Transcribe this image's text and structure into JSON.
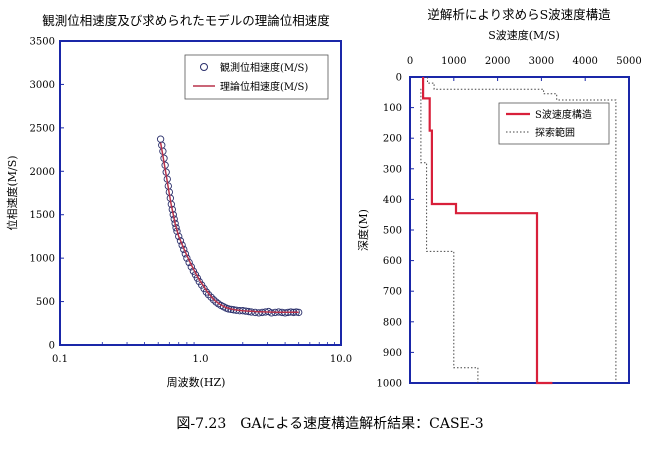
{
  "caption": "図-7.23　GAによる速度構造解析結果：CASE-3",
  "chart_data": [
    {
      "type": "scatter",
      "title": "観測位相速度及び求められたモデルの理論位相速度",
      "xlabel": "周波数(HZ)",
      "ylabel": "位相速度(M/S)",
      "x_scale": "log",
      "xlim": [
        0.1,
        10.0
      ],
      "ylim": [
        0,
        3500
      ],
      "x_ticks": [
        "0.1",
        "1.0",
        "10.0"
      ],
      "y_ticks": [
        "0",
        "500",
        "1000",
        "1500",
        "2000",
        "2500",
        "3000",
        "3500"
      ],
      "legend_position": "top-right",
      "series": [
        {
          "name": "観測位相速度(M/S)",
          "style": "open-circle",
          "color": "#2a2f6b",
          "x": [
            0.52,
            0.53,
            0.54,
            0.55,
            0.56,
            0.57,
            0.58,
            0.59,
            0.6,
            0.61,
            0.62,
            0.63,
            0.64,
            0.65,
            0.66,
            0.67,
            0.68,
            0.7,
            0.72,
            0.74,
            0.76,
            0.78,
            0.8,
            0.83,
            0.86,
            0.89,
            0.92,
            0.95,
            0.98,
            1.02,
            1.06,
            1.1,
            1.14,
            1.19,
            1.24,
            1.29,
            1.34,
            1.4,
            1.46,
            1.52,
            1.58,
            1.65,
            1.72,
            1.8,
            1.9,
            2.0,
            2.1,
            2.2,
            2.3,
            2.45,
            2.6,
            2.75,
            2.9,
            3.05,
            3.2,
            3.4,
            3.6,
            3.8,
            4.0,
            4.2,
            4.4,
            4.6,
            4.8,
            5.0
          ],
          "y": [
            2370,
            2300,
            2230,
            2150,
            2070,
            1990,
            1910,
            1830,
            1760,
            1690,
            1620,
            1560,
            1500,
            1450,
            1400,
            1350,
            1310,
            1250,
            1200,
            1150,
            1100,
            1050,
            1000,
            950,
            900,
            850,
            810,
            770,
            730,
            690,
            650,
            610,
            580,
            550,
            520,
            495,
            475,
            455,
            440,
            425,
            415,
            410,
            405,
            400,
            395,
            395,
            390,
            385,
            380,
            375,
            370,
            375,
            380,
            385,
            370,
            375,
            380,
            375,
            370,
            375,
            380,
            375,
            380,
            375
          ]
        },
        {
          "name": "理論位相速度(M/S)",
          "style": "line",
          "color": "#b8324a",
          "x": [
            0.52,
            0.54,
            0.56,
            0.58,
            0.6,
            0.62,
            0.64,
            0.66,
            0.68,
            0.7,
            0.73,
            0.76,
            0.8,
            0.85,
            0.9,
            0.95,
            1.0,
            1.06,
            1.12,
            1.19,
            1.26,
            1.34,
            1.42,
            1.5,
            1.6,
            1.7,
            1.8,
            2.0,
            2.2,
            2.5,
            3.0,
            3.5,
            4.0,
            4.5,
            5.0
          ],
          "y": [
            2330,
            2180,
            2030,
            1880,
            1740,
            1610,
            1500,
            1400,
            1320,
            1250,
            1180,
            1110,
            1030,
            940,
            860,
            790,
            730,
            670,
            610,
            560,
            515,
            480,
            455,
            435,
            420,
            410,
            403,
            395,
            390,
            385,
            380,
            378,
            377,
            376,
            376
          ]
        }
      ]
    },
    {
      "type": "line",
      "title": "逆解析により求めらS波速度構造",
      "xlabel": "S波速度(M/S)",
      "ylabel": "深度(M)",
      "x_axis_position": "top",
      "y_inverted": true,
      "xlim": [
        0,
        5000
      ],
      "ylim": [
        0,
        1000
      ],
      "x_ticks": [
        "0",
        "1000",
        "2000",
        "3000",
        "4000",
        "5000"
      ],
      "y_ticks": [
        "0",
        "100",
        "200",
        "300",
        "400",
        "500",
        "600",
        "700",
        "800",
        "900",
        "1000"
      ],
      "legend_position": "top-right",
      "series": [
        {
          "name": "S波速度構造",
          "style": "solid",
          "color": "#d8203a",
          "x": [
            300,
            300,
            450,
            450,
            500,
            500,
            1050,
            1050,
            2900,
            2900,
            3250,
            3250
          ],
          "y": [
            0,
            70,
            70,
            175,
            175,
            415,
            415,
            445,
            445,
            1000,
            1000,
            1000
          ]
        },
        {
          "name": "探索範囲",
          "style": "dotted",
          "color": "#444444",
          "x": [
            300,
            300,
            250,
            250,
            380,
            380,
            1000,
            1000,
            1550,
            1550
          ],
          "y": [
            0,
            40,
            40,
            280,
            280,
            570,
            570,
            950,
            950,
            1000
          ]
        },
        {
          "name": "",
          "style": "dotted",
          "color": "#444444",
          "x": [
            400,
            400,
            550,
            550,
            3050,
            3050,
            3350,
            3350,
            4700,
            4700
          ],
          "y": [
            0,
            20,
            20,
            40,
            40,
            55,
            55,
            75,
            75,
            1000
          ]
        }
      ]
    }
  ]
}
